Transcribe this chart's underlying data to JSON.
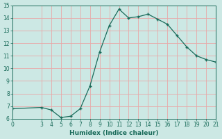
{
  "title": "",
  "xlabel": "Humidex (Indice chaleur)",
  "x_data": [
    0,
    3,
    4,
    5,
    6,
    7,
    8,
    9,
    10,
    11,
    12,
    13,
    14,
    15,
    16,
    17,
    18,
    19,
    20,
    21
  ],
  "y_data": [
    6.8,
    6.9,
    6.7,
    6.1,
    6.2,
    6.8,
    8.6,
    11.3,
    13.4,
    14.7,
    14.0,
    14.1,
    14.3,
    13.9,
    13.5,
    12.6,
    11.7,
    11.0,
    10.7,
    10.5
  ],
  "line_color": "#1a6b5a",
  "marker": "+",
  "bg_color": "#cce8e4",
  "grid_color": "#e8a8a8",
  "xlim": [
    0,
    21
  ],
  "ylim": [
    6,
    15
  ],
  "xticks": [
    0,
    3,
    4,
    5,
    6,
    7,
    8,
    9,
    10,
    11,
    12,
    13,
    14,
    15,
    16,
    17,
    18,
    19,
    20,
    21
  ],
  "yticks": [
    6,
    7,
    8,
    9,
    10,
    11,
    12,
    13,
    14,
    15
  ],
  "tick_fontsize": 5.5,
  "label_fontsize": 6.5
}
